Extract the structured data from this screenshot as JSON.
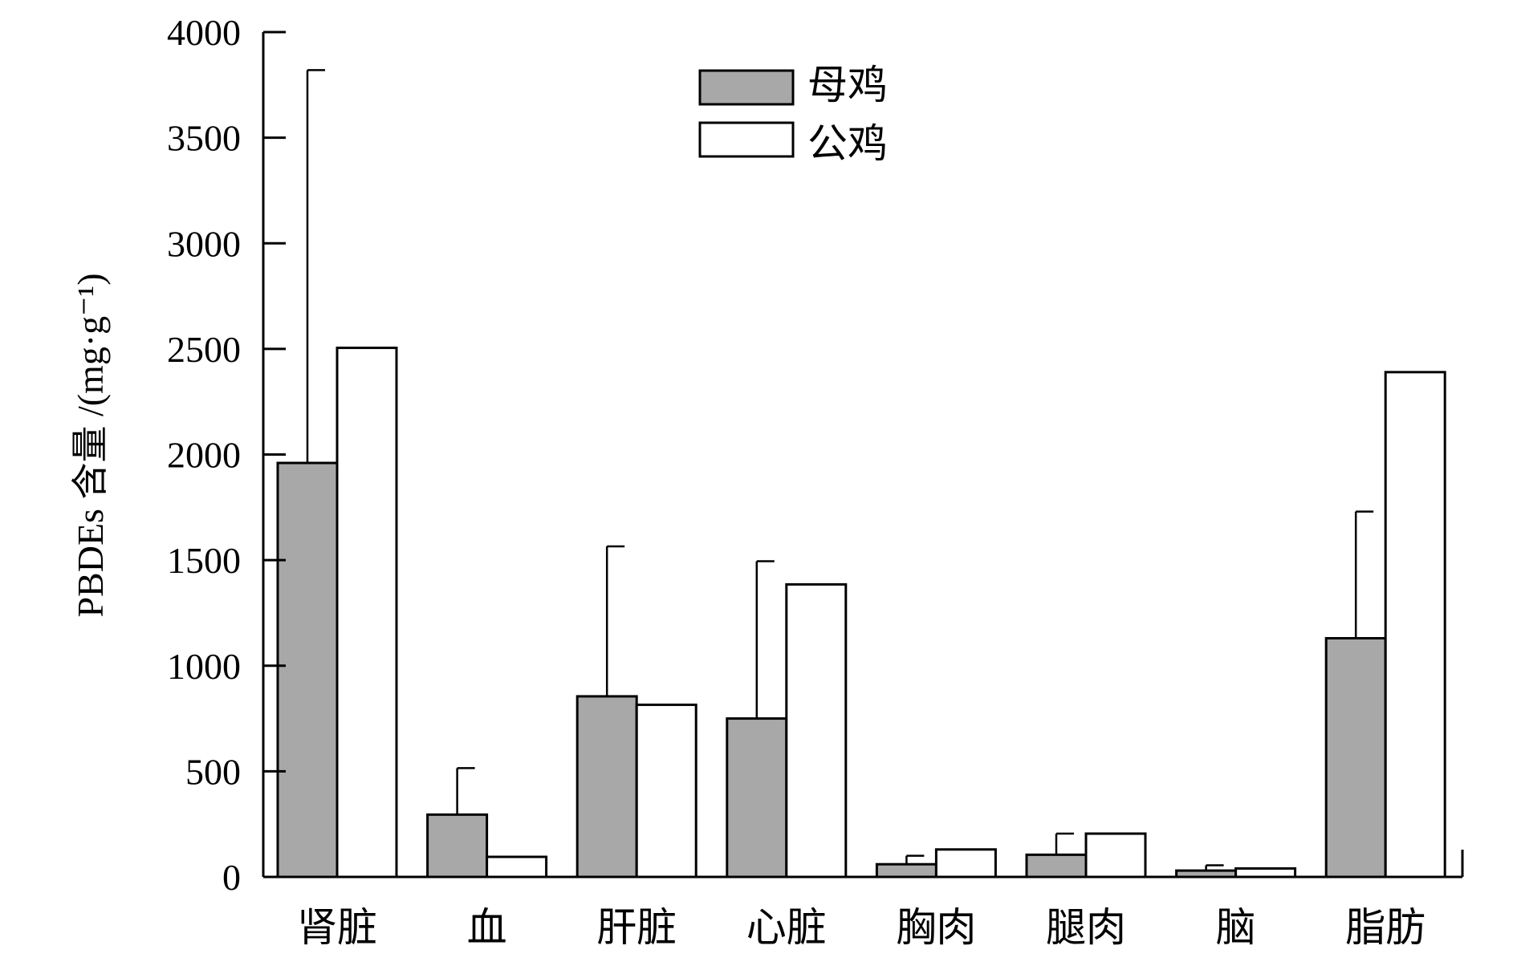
{
  "chart_data": {
    "type": "bar",
    "categories": [
      "肾脏",
      "血",
      "肝脏",
      "心脏",
      "胸肉",
      "腿肉",
      "脑",
      "脂肪"
    ],
    "series": [
      {
        "name": "母鸡",
        "color": "#a8a8a8",
        "values": [
          1960,
          295,
          855,
          750,
          60,
          105,
          30,
          1130
        ],
        "error_upper": [
          3820,
          515,
          1565,
          1495,
          100,
          205,
          55,
          1730
        ]
      },
      {
        "name": "公鸡",
        "color": "#ffffff",
        "values": [
          2505,
          95,
          815,
          1385,
          130,
          205,
          40,
          2390
        ]
      }
    ],
    "ylabel": "PBDEs 含量 /(mg·g⁻¹)",
    "ylim": [
      0,
      4000
    ],
    "yticks": [
      0,
      500,
      1000,
      1500,
      2000,
      2500,
      3000,
      3500,
      4000
    ],
    "grid": false,
    "legend_position": "top-center"
  }
}
